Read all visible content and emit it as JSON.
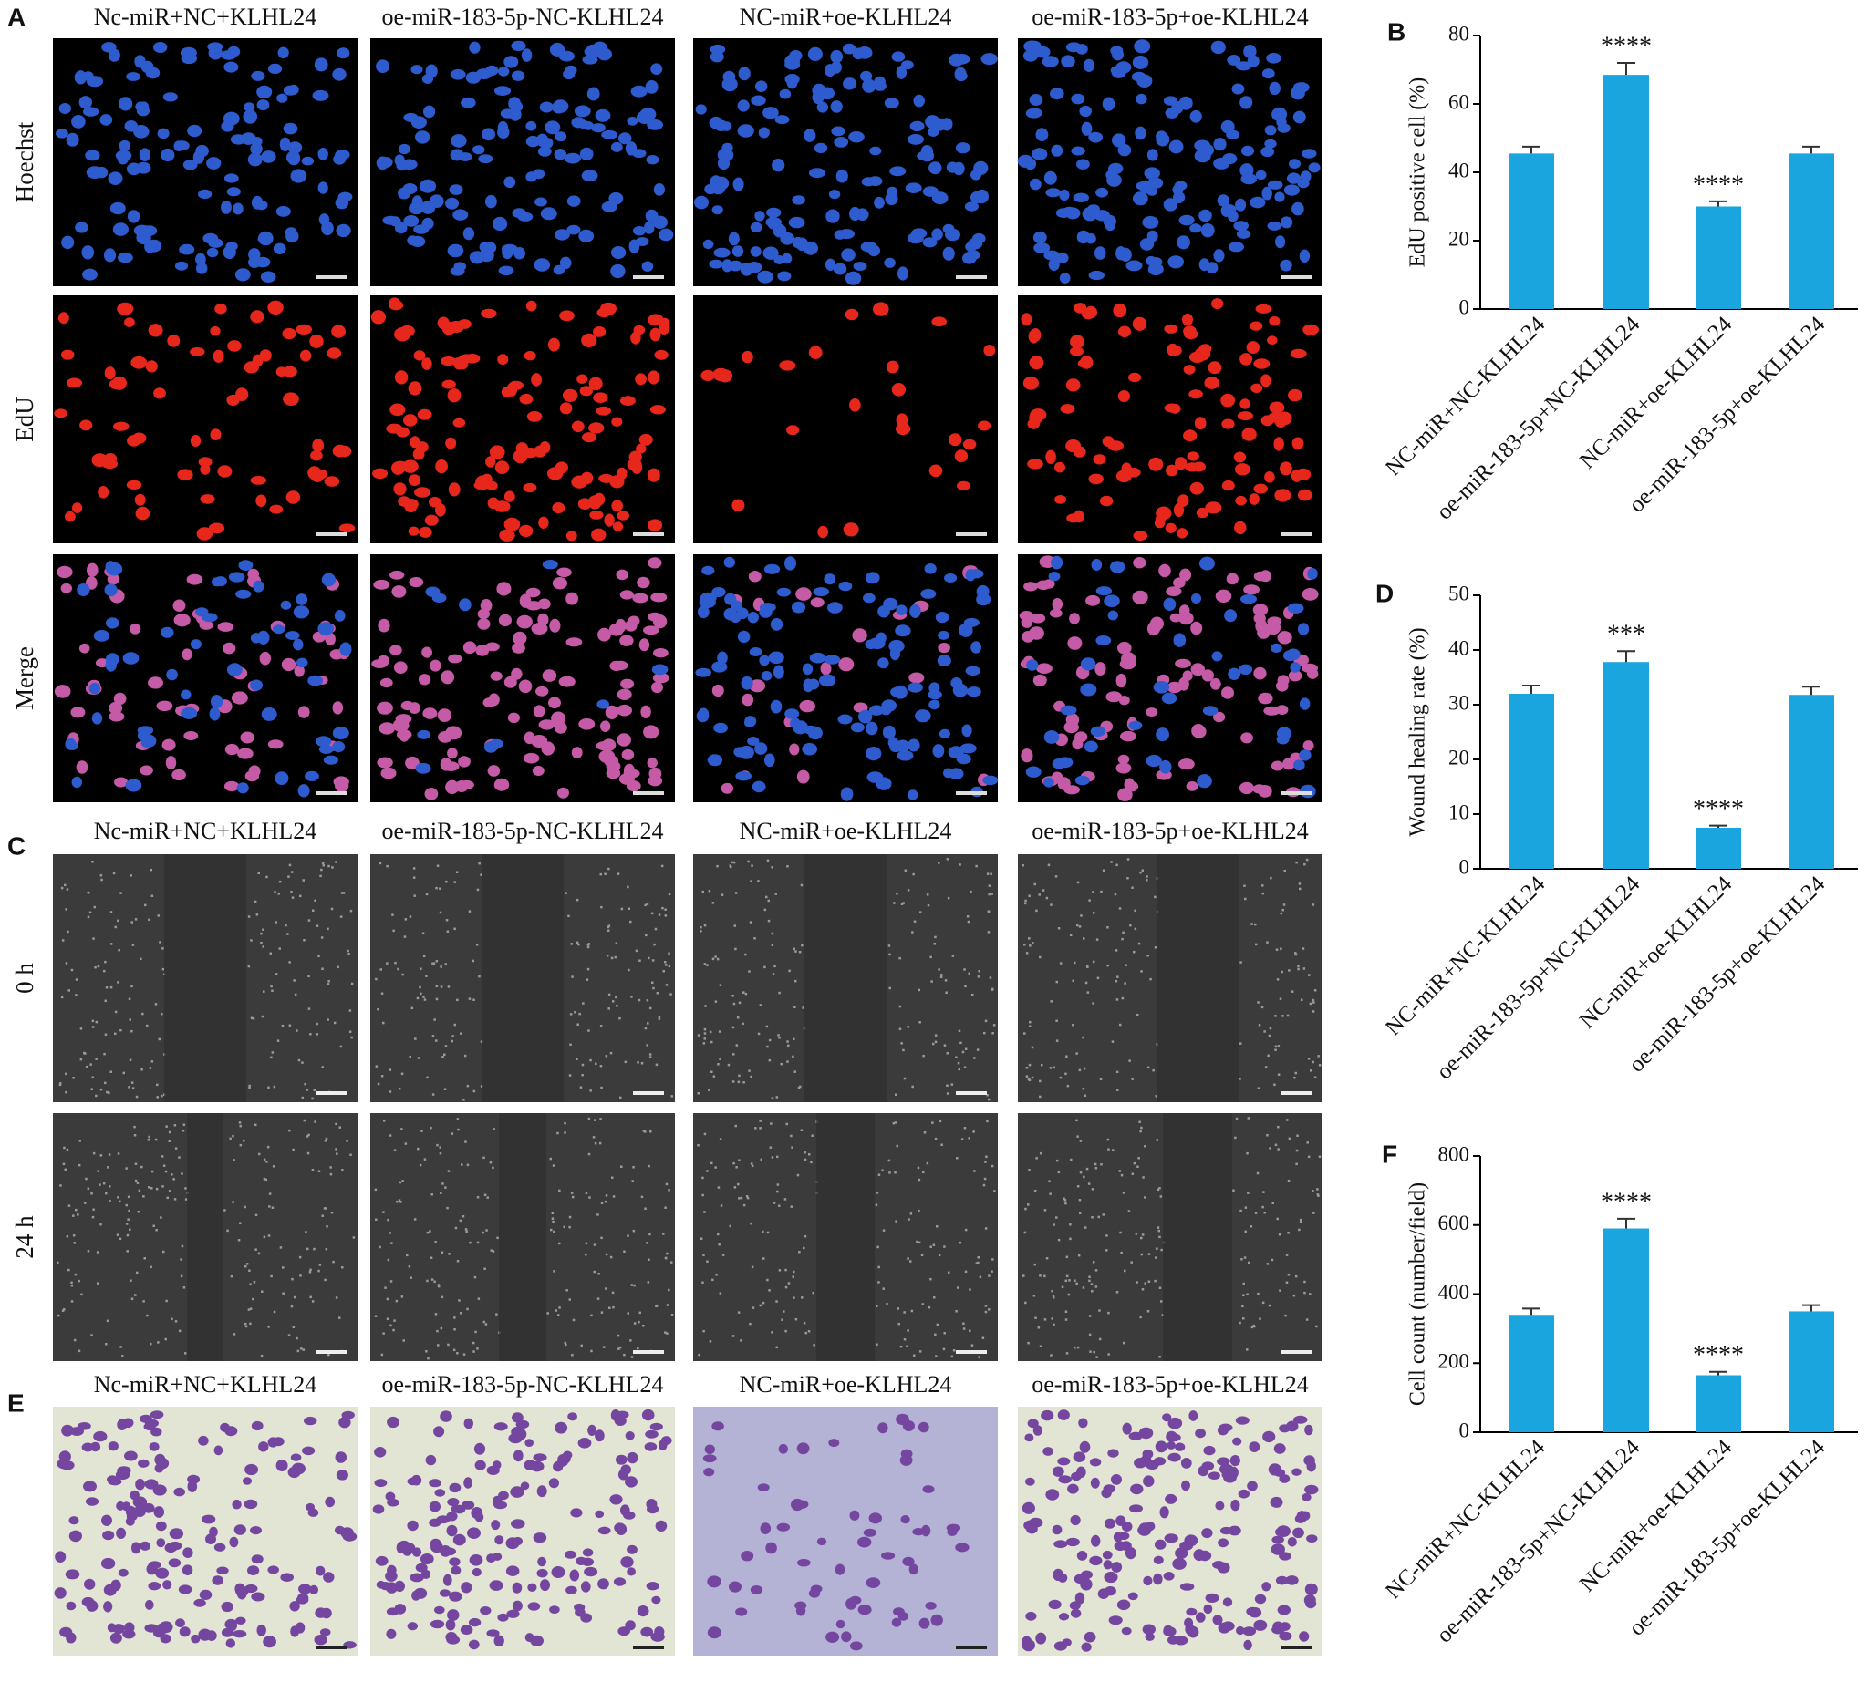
{
  "panels": {
    "A": {
      "label": "A",
      "columns": [
        "Nc-miR+NC+KLHL24",
        "oe-miR-183-5p-NC-KLHL24",
        "NC-miR+oe-KLHL24",
        "oe-miR-183-5p+oe-KLHL24"
      ],
      "rows": [
        "Hoechst",
        "EdU",
        "Merge"
      ]
    },
    "C": {
      "label": "C",
      "columns": [
        "Nc-miR+NC+KLHL24",
        "oe-miR-183-5p-NC-KLHL24",
        "NC-miR+oe-KLHL24",
        "oe-miR-183-5p+oe-KLHL24"
      ],
      "rows": [
        "0 h",
        "24 h"
      ]
    },
    "E": {
      "label": "E",
      "columns": [
        "Nc-miR+NC+KLHL24",
        "oe-miR-183-5p-NC-KLHL24",
        "NC-miR+oe-KLHL24",
        "oe-miR-183-5p+oe-KLHL24"
      ]
    }
  },
  "chart_data": [
    {
      "label": "B",
      "type": "bar",
      "ylabel": "EdU positive cell (%)",
      "categories": [
        "NC-miR+NC-KLHL24",
        "oe-miR-183-5p+NC-KLHL24",
        "NC-miR+oe-KLHL24",
        "oe-miR-183-5p+oe-KLHL24"
      ],
      "values": [
        45.5,
        68.5,
        30,
        45.5
      ],
      "errors": [
        2,
        3.5,
        1.5,
        2
      ],
      "annotations": [
        null,
        "****",
        "****",
        null
      ],
      "ylim": [
        0,
        80
      ],
      "yticks": [
        0,
        20,
        40,
        60,
        80
      ],
      "color": "#1ba5df"
    },
    {
      "label": "D",
      "type": "bar",
      "ylabel": "Wound healing rate (%)",
      "categories": [
        "NC-miR+NC-KLHL24",
        "oe-miR-183-5p+NC-KLHL24",
        "NC-miR+oe-KLHL24",
        "oe-miR-183-5p+oe-KLHL24"
      ],
      "values": [
        32,
        37.8,
        7.5,
        31.8
      ],
      "errors": [
        1.5,
        2,
        0.4,
        1.5
      ],
      "annotations": [
        null,
        "***",
        "****",
        null
      ],
      "ylim": [
        0,
        50
      ],
      "yticks": [
        0,
        10,
        20,
        30,
        40,
        50
      ],
      "color": "#1ba5df"
    },
    {
      "label": "F",
      "type": "bar",
      "ylabel": "Cell count (number/field)",
      "categories": [
        "NC-miR+NC-KLHL24",
        "oe-miR-183-5p+NC-KLHL24",
        "NC-miR+oe-KLHL24",
        "oe-miR-183-5p+oe-KLHL24"
      ],
      "values": [
        340,
        590,
        165,
        350
      ],
      "errors": [
        18,
        28,
        10,
        18
      ],
      "annotations": [
        null,
        "****",
        "****",
        null
      ],
      "ylim": [
        0,
        800
      ],
      "yticks": [
        0,
        200,
        400,
        600,
        800
      ],
      "color": "#1ba5df"
    }
  ]
}
